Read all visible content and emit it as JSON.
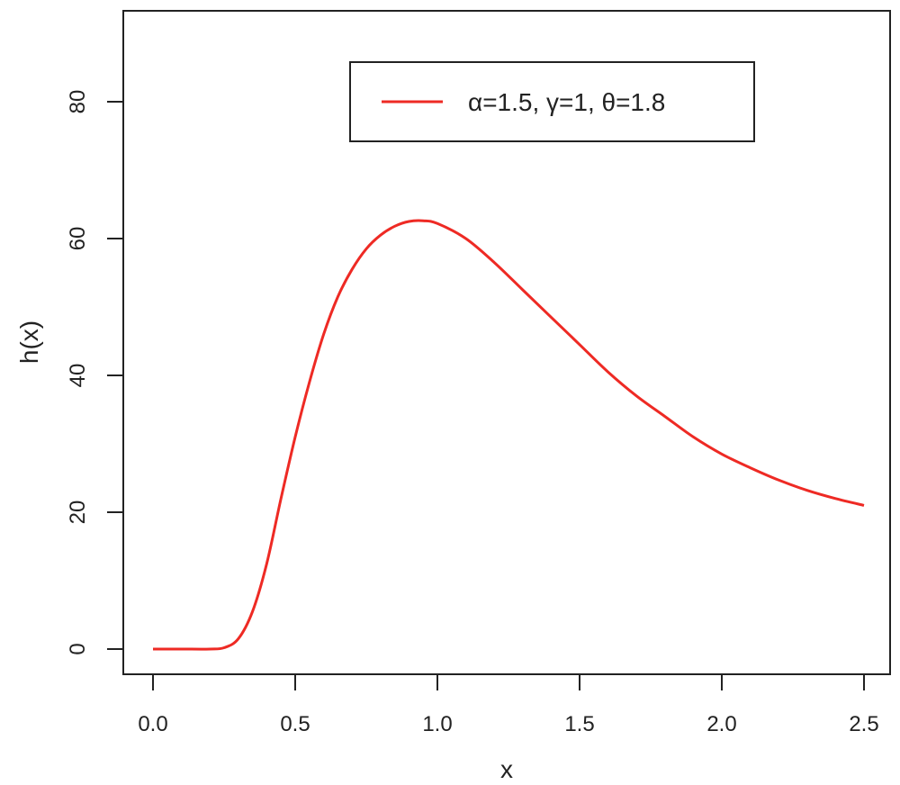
{
  "chart_data": {
    "type": "line",
    "title": "",
    "xlabel": "x",
    "ylabel": "h(x)",
    "xlim": [
      0.0,
      2.5
    ],
    "ylim": [
      0,
      90
    ],
    "x_ticks": [
      "0.0",
      "0.5",
      "1.0",
      "1.5",
      "2.0",
      "2.5"
    ],
    "y_ticks": [
      "0",
      "20",
      "40",
      "60",
      "80"
    ],
    "grid": false,
    "legend_position": "top-right",
    "series": [
      {
        "name": "α=1.5, γ=1, θ=1.8",
        "color": "#ee2a24",
        "x": [
          0.0,
          0.1,
          0.2,
          0.25,
          0.3,
          0.35,
          0.4,
          0.45,
          0.5,
          0.55,
          0.6,
          0.65,
          0.7,
          0.75,
          0.8,
          0.85,
          0.9,
          0.95,
          1.0,
          1.1,
          1.2,
          1.3,
          1.4,
          1.5,
          1.6,
          1.7,
          1.8,
          1.9,
          2.0,
          2.1,
          2.2,
          2.3,
          2.4,
          2.5
        ],
        "y": [
          0.0,
          0.0,
          0.0,
          0.2,
          1.5,
          5.5,
          12.5,
          22.0,
          31.0,
          39.0,
          46.0,
          51.5,
          55.5,
          58.5,
          60.5,
          61.8,
          62.5,
          62.6,
          62.2,
          60.0,
          56.5,
          52.5,
          48.5,
          44.5,
          40.5,
          37.0,
          34.0,
          31.0,
          28.5,
          26.5,
          24.7,
          23.2,
          22.0,
          21.0
        ]
      }
    ]
  }
}
